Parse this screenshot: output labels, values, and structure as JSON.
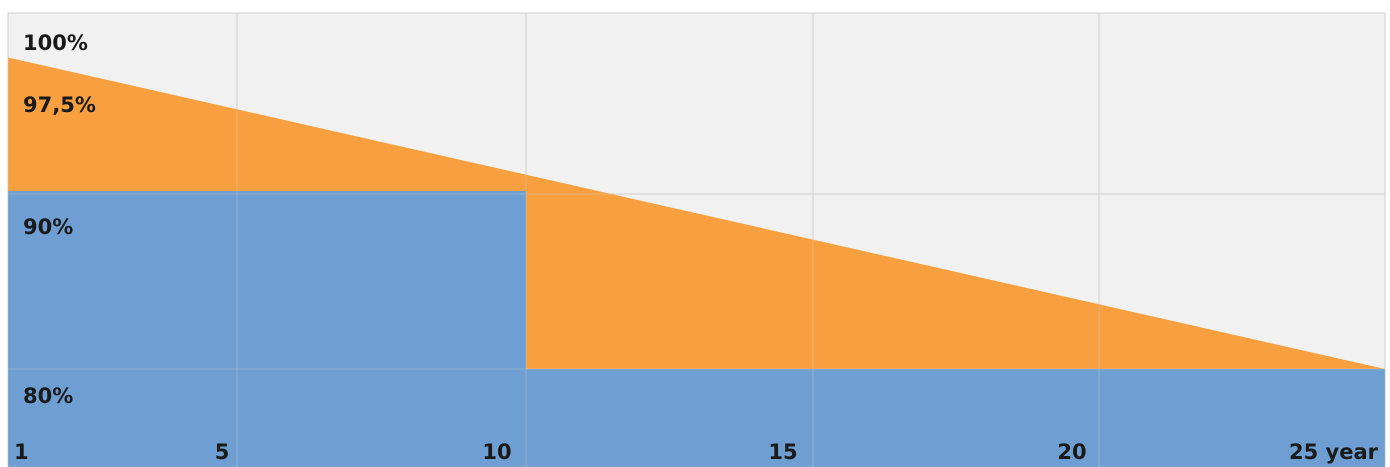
{
  "chart_data": {
    "type": "area",
    "title": "",
    "x_unit": "year",
    "x_ticks": [
      {
        "value": 1,
        "label": "1"
      },
      {
        "value": 5,
        "label": "5"
      },
      {
        "value": 10,
        "label": "10"
      },
      {
        "value": 15,
        "label": "15"
      },
      {
        "value": 20,
        "label": "20"
      },
      {
        "value": 25,
        "label": "25 year"
      }
    ],
    "y_ticks": [
      {
        "value": 100,
        "label": "100%"
      },
      {
        "value": 97.5,
        "label": "97,5%"
      },
      {
        "value": 90,
        "label": "90%"
      },
      {
        "value": 80,
        "label": "80%"
      }
    ],
    "xlim": [
      1,
      25
    ],
    "ylim": [
      80,
      100
    ],
    "grid": true,
    "series": [
      {
        "type": "linear",
        "color": "#f8a040",
        "points": [
          {
            "x": 1,
            "y": 97.5
          },
          {
            "x": 25,
            "y": 80
          }
        ]
      },
      {
        "type": "step",
        "color": "#6f9fd2",
        "points": [
          {
            "x": 1,
            "y": 90
          },
          {
            "x": 10,
            "y": 90
          },
          {
            "x": 10,
            "y": 80
          },
          {
            "x": 25,
            "y": 80
          }
        ]
      }
    ],
    "colors": {
      "background": "#f1f1f1",
      "grid": "#cfcfcf"
    }
  }
}
